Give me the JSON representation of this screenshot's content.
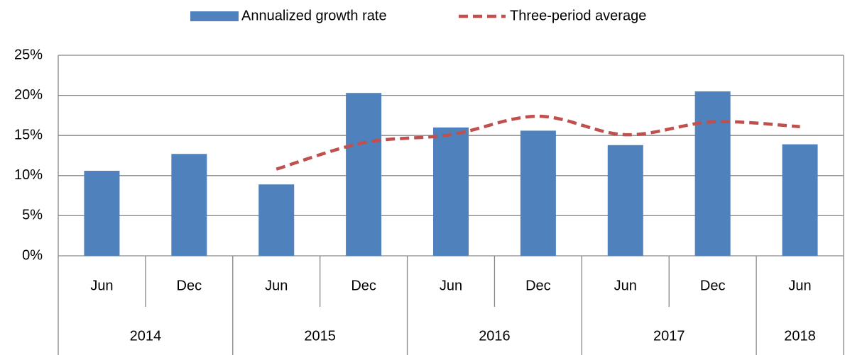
{
  "chart_data": {
    "type": "bar-line",
    "categories": [
      "Jun",
      "Dec",
      "Jun",
      "Dec",
      "Jun",
      "Dec",
      "Jun",
      "Dec",
      "Jun"
    ],
    "years": [
      "2014",
      "2014",
      "2015",
      "2015",
      "2016",
      "2016",
      "2017",
      "2017",
      "2018"
    ],
    "series": [
      {
        "name": "Annualized growth rate",
        "type": "bar",
        "color": "#4f81bd",
        "values": [
          10.6,
          12.7,
          8.9,
          20.3,
          16.0,
          15.6,
          13.8,
          20.5,
          13.9
        ]
      },
      {
        "name": "Three-period average",
        "type": "line",
        "color": "#c0504d",
        "dashed": true,
        "values": [
          null,
          null,
          10.8,
          14.1,
          15.1,
          17.4,
          15.1,
          16.7,
          16.1
        ]
      }
    ],
    "ylim": [
      0,
      25
    ],
    "yticks": [
      {
        "value": 0,
        "label": "0%"
      },
      {
        "value": 5,
        "label": "5%"
      },
      {
        "value": 10,
        "label": "10%"
      },
      {
        "value": 15,
        "label": "15%"
      },
      {
        "value": 20,
        "label": "20%"
      },
      {
        "value": 25,
        "label": "25%"
      }
    ],
    "grid": true,
    "legend": "top"
  }
}
